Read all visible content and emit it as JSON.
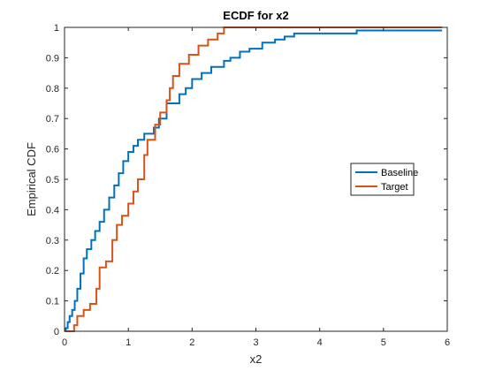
{
  "chart_data": {
    "type": "line",
    "title": "ECDF for x2",
    "xlabel": "x2",
    "ylabel": "Empirical CDF",
    "xlim": [
      0,
      6
    ],
    "ylim": [
      0,
      1
    ],
    "xticks": [
      "0",
      "1",
      "2",
      "3",
      "4",
      "5",
      "6"
    ],
    "yticks": [
      "0",
      "0.1",
      "0.2",
      "0.3",
      "0.4",
      "0.5",
      "0.6",
      "0.7",
      "0.8",
      "0.9",
      "1"
    ],
    "grid": false,
    "legend_position": "right",
    "series": [
      {
        "name": "Baseline",
        "color": "#0072BD",
        "step": true,
        "points": [
          [
            0,
            0
          ],
          [
            0.02,
            0.01
          ],
          [
            0.05,
            0.03
          ],
          [
            0.08,
            0.05
          ],
          [
            0.12,
            0.07
          ],
          [
            0.16,
            0.1
          ],
          [
            0.2,
            0.14
          ],
          [
            0.25,
            0.19
          ],
          [
            0.3,
            0.24
          ],
          [
            0.35,
            0.27
          ],
          [
            0.42,
            0.3
          ],
          [
            0.48,
            0.33
          ],
          [
            0.55,
            0.36
          ],
          [
            0.62,
            0.4
          ],
          [
            0.7,
            0.44
          ],
          [
            0.78,
            0.48
          ],
          [
            0.85,
            0.52
          ],
          [
            0.92,
            0.56
          ],
          [
            1.0,
            0.59
          ],
          [
            1.08,
            0.61
          ],
          [
            1.15,
            0.63
          ],
          [
            1.25,
            0.65
          ],
          [
            1.4,
            0.67
          ],
          [
            1.48,
            0.7
          ],
          [
            1.6,
            0.75
          ],
          [
            1.8,
            0.78
          ],
          [
            1.9,
            0.8
          ],
          [
            2.0,
            0.83
          ],
          [
            2.15,
            0.85
          ],
          [
            2.3,
            0.87
          ],
          [
            2.5,
            0.89
          ],
          [
            2.6,
            0.9
          ],
          [
            2.75,
            0.92
          ],
          [
            2.9,
            0.93
          ],
          [
            3.1,
            0.95
          ],
          [
            3.3,
            0.96
          ],
          [
            3.45,
            0.97
          ],
          [
            3.6,
            0.98
          ],
          [
            4.58,
            0.99
          ],
          [
            5.92,
            0.99
          ]
        ]
      },
      {
        "name": "Target",
        "color": "#D95319",
        "step": true,
        "points": [
          [
            0,
            0
          ],
          [
            0.15,
            0.02
          ],
          [
            0.2,
            0.05
          ],
          [
            0.3,
            0.07
          ],
          [
            0.4,
            0.09
          ],
          [
            0.5,
            0.14
          ],
          [
            0.55,
            0.21
          ],
          [
            0.65,
            0.23
          ],
          [
            0.75,
            0.3
          ],
          [
            0.82,
            0.35
          ],
          [
            0.9,
            0.38
          ],
          [
            1.0,
            0.42
          ],
          [
            1.08,
            0.46
          ],
          [
            1.15,
            0.5
          ],
          [
            1.25,
            0.58
          ],
          [
            1.3,
            0.63
          ],
          [
            1.42,
            0.68
          ],
          [
            1.5,
            0.72
          ],
          [
            1.6,
            0.76
          ],
          [
            1.65,
            0.8
          ],
          [
            1.7,
            0.84
          ],
          [
            1.8,
            0.88
          ],
          [
            1.95,
            0.91
          ],
          [
            2.1,
            0.94
          ],
          [
            2.25,
            0.96
          ],
          [
            2.4,
            0.98
          ],
          [
            2.5,
            1.0
          ],
          [
            5.92,
            1.0
          ]
        ]
      }
    ]
  }
}
